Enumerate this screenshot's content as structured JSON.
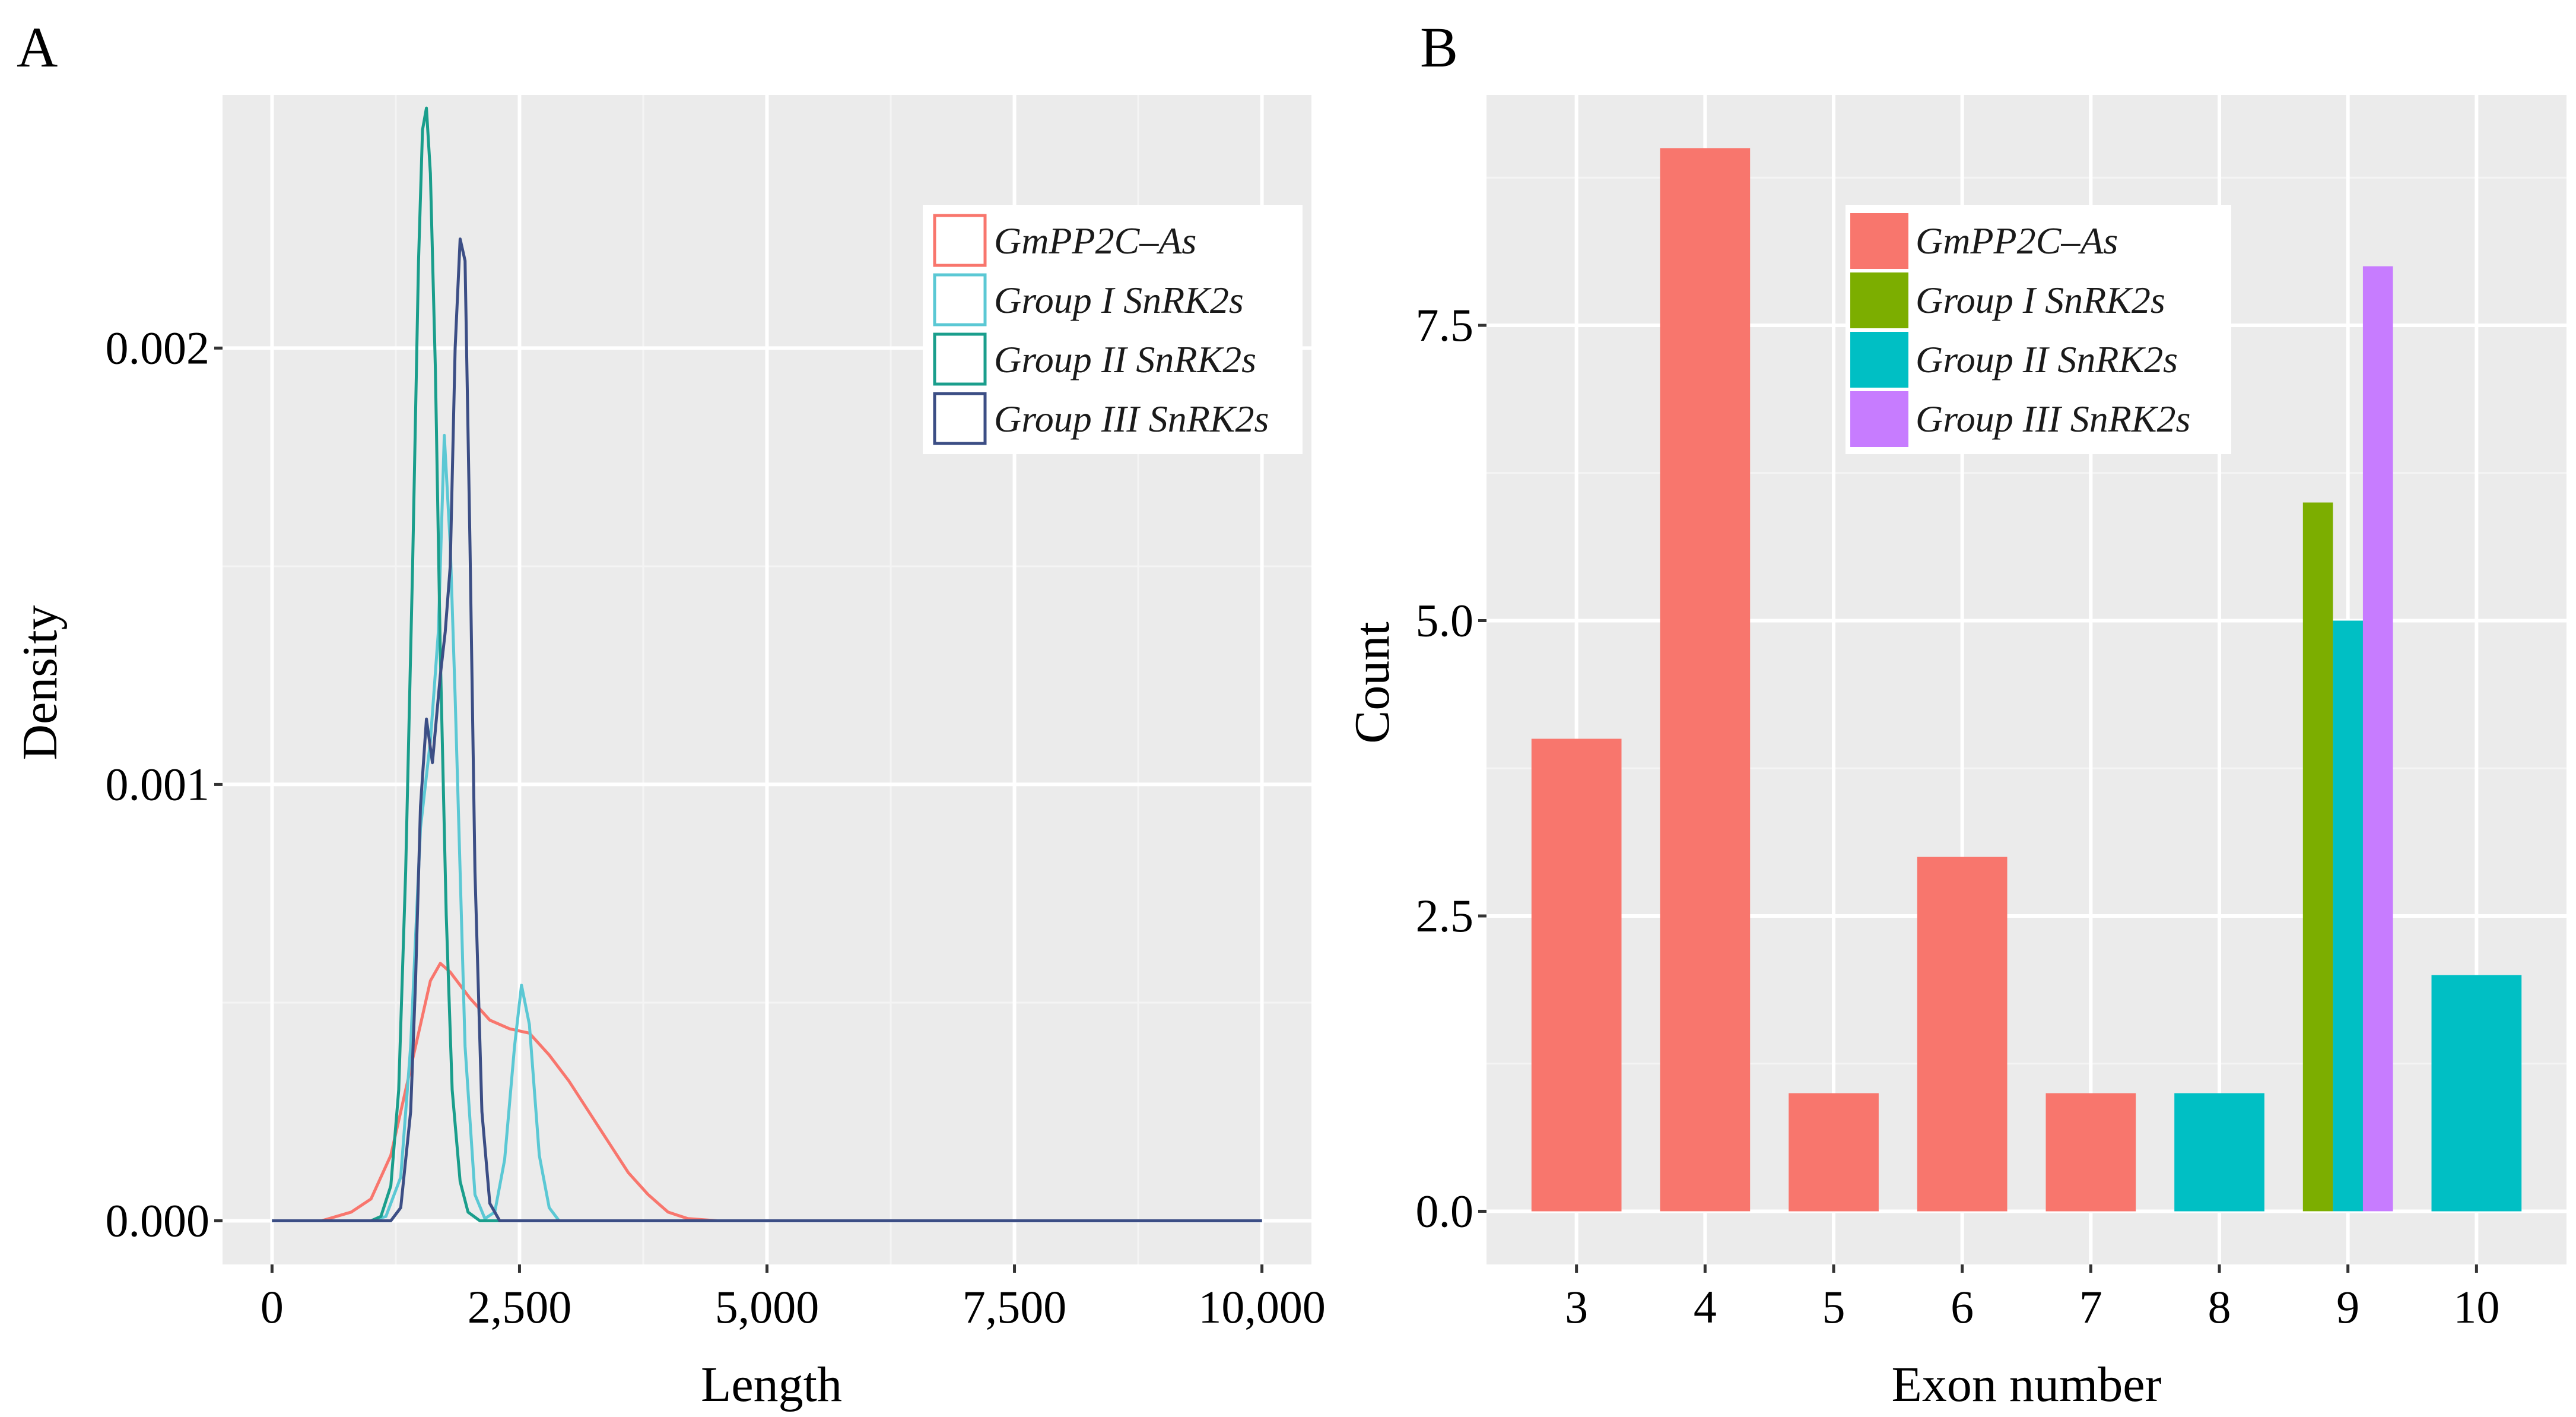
{
  "chart_data": [
    {
      "panel": "A",
      "type": "line",
      "title": "",
      "xlabel": "Length",
      "ylabel": "Density",
      "xlim": [
        -500,
        10500
      ],
      "ylim": [
        -0.0001,
        0.00258
      ],
      "xticks": [
        0,
        2500,
        5000,
        7500,
        10000
      ],
      "xtick_labels": [
        "0",
        "2,500",
        "5,000",
        "7,500",
        "10,000"
      ],
      "yticks": [
        0.0,
        0.001,
        0.002
      ],
      "ytick_labels": [
        "0.000",
        "0.001",
        "0.002"
      ],
      "legend_position": "top-right",
      "series": [
        {
          "name": "GmPP2C–As",
          "color": "#F8766D",
          "x": [
            0,
            500,
            800,
            1000,
            1200,
            1400,
            1600,
            1700,
            1800,
            2000,
            2200,
            2400,
            2600,
            2800,
            3000,
            3200,
            3400,
            3600,
            3800,
            4000,
            4200,
            4500,
            6000,
            8000,
            10000
          ],
          "y": [
            0,
            0,
            2e-05,
            5e-05,
            0.00015,
            0.00035,
            0.00055,
            0.00059,
            0.00057,
            0.00051,
            0.00046,
            0.00044,
            0.00043,
            0.00038,
            0.00032,
            0.00025,
            0.00018,
            0.00011,
            6e-05,
            2e-05,
            5e-06,
            0,
            0,
            0,
            0
          ]
        },
        {
          "name": "Group I SnRK2s",
          "color": "#5BC8D4",
          "x": [
            0,
            1000,
            1150,
            1300,
            1400,
            1500,
            1600,
            1680,
            1740,
            1800,
            1850,
            1900,
            1950,
            2050,
            2150,
            2250,
            2350,
            2450,
            2520,
            2600,
            2700,
            2800,
            2900,
            4000,
            10000
          ],
          "y": [
            0,
            0,
            1e-05,
            0.0001,
            0.0004,
            0.0009,
            0.0011,
            0.00135,
            0.0018,
            0.00155,
            0.0012,
            0.0008,
            0.0004,
            6e-05,
            5e-06,
            2e-05,
            0.00014,
            0.0004,
            0.00054,
            0.00045,
            0.00015,
            3e-05,
            0,
            0,
            0
          ]
        },
        {
          "name": "Group II SnRK2s",
          "color": "#1A9E8C",
          "x": [
            0,
            1000,
            1100,
            1200,
            1280,
            1350,
            1420,
            1480,
            1520,
            1560,
            1600,
            1650,
            1700,
            1760,
            1820,
            1900,
            1980,
            2100,
            2200,
            10000
          ],
          "y": [
            0,
            0,
            1e-05,
            8e-05,
            0.0003,
            0.0008,
            0.0015,
            0.0022,
            0.0025,
            0.00255,
            0.0024,
            0.00195,
            0.0013,
            0.0007,
            0.0003,
            9e-05,
            2e-05,
            0,
            0,
            0
          ]
        },
        {
          "name": "Group III SnRK2s",
          "color": "#3C4E85",
          "x": [
            0,
            1200,
            1300,
            1400,
            1450,
            1500,
            1560,
            1620,
            1700,
            1750,
            1800,
            1850,
            1900,
            1950,
            2000,
            2050,
            2120,
            2200,
            2300,
            10000
          ],
          "y": [
            0,
            0,
            3e-05,
            0.00025,
            0.00055,
            0.00095,
            0.00115,
            0.00105,
            0.00125,
            0.00135,
            0.0015,
            0.002,
            0.00225,
            0.0022,
            0.00155,
            0.0008,
            0.00025,
            4e-05,
            0,
            0
          ]
        }
      ]
    },
    {
      "panel": "B",
      "type": "bar",
      "title": "",
      "xlabel": "Exon number",
      "ylabel": "Count",
      "categories": [
        "3",
        "4",
        "5",
        "6",
        "7",
        "8",
        "9",
        "10"
      ],
      "ylim": [
        -0.45,
        9.45
      ],
      "yticks": [
        0,
        2.5,
        5,
        7.5
      ],
      "ytick_labels": [
        "0.0",
        "2.5",
        "5.0",
        "7.5"
      ],
      "legend_position": "top-center",
      "series": [
        {
          "name": "GmPP2C–As",
          "color": "#F8766D",
          "values": [
            4,
            9,
            1,
            3,
            1,
            0,
            0,
            0
          ]
        },
        {
          "name": "Group I SnRK2s",
          "color": "#7CAE00",
          "values": [
            0,
            0,
            0,
            0,
            0,
            0,
            6,
            0
          ]
        },
        {
          "name": "Group II SnRK2s",
          "color": "#00BFC4",
          "values": [
            0,
            0,
            0,
            0,
            0,
            1,
            5,
            2
          ]
        },
        {
          "name": "Group III SnRK2s",
          "color": "#C77CFF",
          "values": [
            0,
            0,
            0,
            0,
            0,
            0,
            8,
            0
          ]
        }
      ]
    }
  ]
}
